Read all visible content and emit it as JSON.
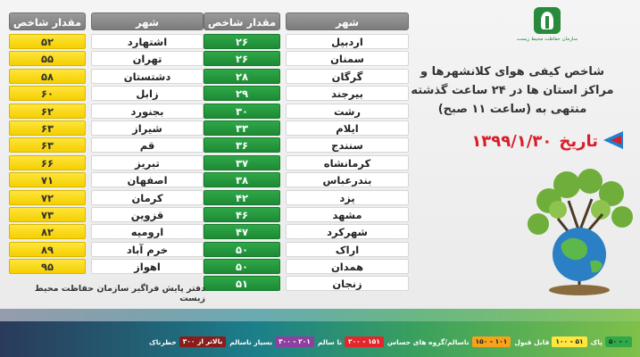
{
  "headline": {
    "line1": "شاخص کیفی هوای کلانشهرها و",
    "line2": "مراکز استان ها در ۲۴ ساعت گذشته",
    "line3": "منتهی به (ساعت ۱۱ صبح)"
  },
  "date": {
    "label": "تاریخ",
    "value": "۱۳۹۹/۱/۳۰"
  },
  "logo": {
    "text": "سازمان حفاظت محیط زیست"
  },
  "table_headers": {
    "city": "شهر",
    "value": "مقدار شاخص"
  },
  "right_table": [
    {
      "city": "اردبیل",
      "value": "۲۶"
    },
    {
      "city": "سمنان",
      "value": "۲۶"
    },
    {
      "city": "گرگان",
      "value": "۲۸"
    },
    {
      "city": "بیرجند",
      "value": "۲۹"
    },
    {
      "city": "رشت",
      "value": "۳۰"
    },
    {
      "city": "ایلام",
      "value": "۳۳"
    },
    {
      "city": "سنندج",
      "value": "۳۶"
    },
    {
      "city": "کرمانشاه",
      "value": "۳۷"
    },
    {
      "city": "بندرعباس",
      "value": "۳۸"
    },
    {
      "city": "یزد",
      "value": "۴۲"
    },
    {
      "city": "مشهد",
      "value": "۴۶"
    },
    {
      "city": "شهرکرد",
      "value": "۴۷"
    },
    {
      "city": "اراک",
      "value": "۵۰"
    },
    {
      "city": "همدان",
      "value": "۵۰"
    },
    {
      "city": "زنجان",
      "value": "۵۱"
    }
  ],
  "left_table": [
    {
      "city": "اشتهارد",
      "value": "۵۲"
    },
    {
      "city": "تهران",
      "value": "۵۵"
    },
    {
      "city": "دشتستان",
      "value": "۵۸"
    },
    {
      "city": "زابل",
      "value": "۶۰"
    },
    {
      "city": "بجنورد",
      "value": "۶۲"
    },
    {
      "city": "شیراز",
      "value": "۶۳"
    },
    {
      "city": "قم",
      "value": "۶۳"
    },
    {
      "city": "تبریز",
      "value": "۶۶"
    },
    {
      "city": "اصفهان",
      "value": "۷۱"
    },
    {
      "city": "کرمان",
      "value": "۷۲"
    },
    {
      "city": "قزوین",
      "value": "۷۳"
    },
    {
      "city": "ارومیه",
      "value": "۸۲"
    },
    {
      "city": "خرم آباد",
      "value": "۸۹"
    },
    {
      "city": "اهواز",
      "value": "۹۵"
    }
  ],
  "footnote": "دفتر پایش فراگیر سازمان حفاظت محیط زیست",
  "legend": [
    {
      "range": "۰ - ۵۰",
      "label": "پاک",
      "color": "#2ea848"
    },
    {
      "range": "۵۱ - ۱۰۰",
      "label": "قابل قبول",
      "color": "#ffe53d"
    },
    {
      "range": "۱۰۱ - ۱۵۰",
      "label": "ناسالم/گروه های حساس",
      "color": "#f7a21b"
    },
    {
      "range": "۱۵۱ - ۲۰۰",
      "label": "نا سالم",
      "color": "#e2262c"
    },
    {
      "range": "۲۰۱ - ۳۰۰",
      "label": "بسیار ناسالم",
      "color": "#8e3fa0"
    },
    {
      "range": "بالاتر از ۳۰۰",
      "label": "خطرناک",
      "color": "#8a1c1c"
    }
  ]
}
